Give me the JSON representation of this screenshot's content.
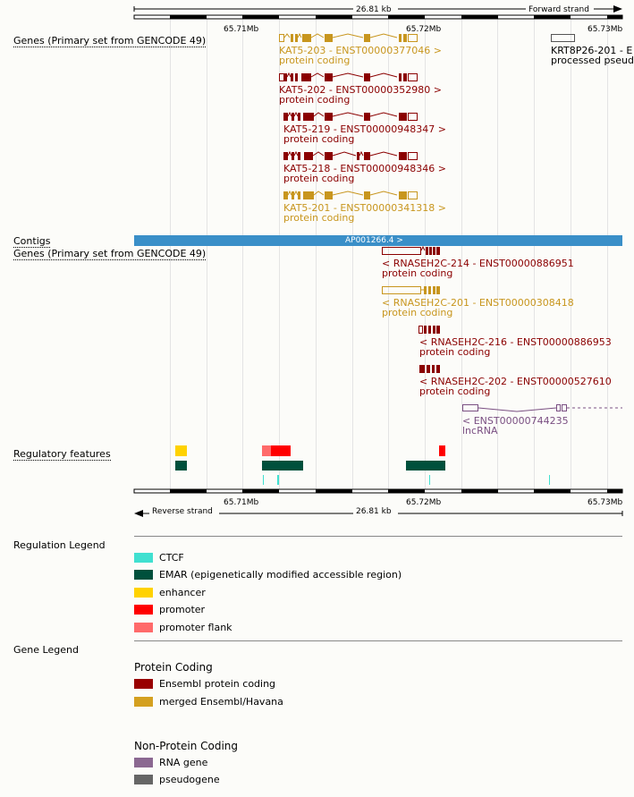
{
  "ruler_top": {
    "length": "26.81 kb",
    "strand": "Forward strand",
    "ticks": [
      "65.71Mb",
      "65.72Mb",
      "65.73Mb"
    ]
  },
  "ruler_bottom": {
    "length": "26.81 kb",
    "strand": "Reverse strand",
    "ticks": [
      "65.71Mb",
      "65.72Mb",
      "65.73Mb"
    ]
  },
  "tracks": {
    "genes_forward": "Genes (Primary set from GENCODE 49)",
    "contigs": "Contigs",
    "genes_reverse": "Genes (Primary set from GENCODE 49)",
    "regulatory": "Regulatory features"
  },
  "contig": {
    "label": "AP001266.4 >"
  },
  "forward_transcripts": [
    {
      "name": "KAT5-203 - ENST00000377046 >",
      "biotype": "protein coding",
      "color": "#c8961e"
    },
    {
      "name": "KAT5-202 - ENST00000352980 >",
      "biotype": "protein coding",
      "color": "#8b0000"
    },
    {
      "name": "KAT5-219 - ENST00000948347 >",
      "biotype": "protein coding",
      "color": "#8b0000"
    },
    {
      "name": "KAT5-218 - ENST00000948346 >",
      "biotype": "protein coding",
      "color": "#8b0000"
    },
    {
      "name": "KAT5-201 - ENST00000341318 >",
      "biotype": "protein coding",
      "color": "#c8961e"
    },
    {
      "name": "KRT8P26-201 - E",
      "biotype": "processed pseud",
      "color": "#555555"
    }
  ],
  "reverse_transcripts": [
    {
      "name": "< RNASEH2C-214 - ENST00000886951",
      "biotype": "protein coding",
      "color": "#8b0000"
    },
    {
      "name": "< RNASEH2C-201 - ENST00000308418",
      "biotype": "protein coding",
      "color": "#c8961e"
    },
    {
      "name": "< RNASEH2C-216 - ENST00000886953",
      "biotype": "protein coding",
      "color": "#8b0000"
    },
    {
      "name": "< RNASEH2C-202 - ENST00000527610",
      "biotype": "protein coding",
      "color": "#8b0000"
    },
    {
      "name": "< ENST00000744235",
      "biotype": "lncRNA",
      "color": "#7a4f82"
    }
  ],
  "regulation_legend": {
    "title": "Regulation Legend",
    "items": [
      {
        "label": "CTCF",
        "color": "#40e0d0"
      },
      {
        "label": "EMAR (epigenetically modified accessible region)",
        "color": "#00503c"
      },
      {
        "label": "enhancer",
        "color": "#ffd200"
      },
      {
        "label": "promoter",
        "color": "#ff0000"
      },
      {
        "label": "promoter flank",
        "color": "#ff6a6a"
      }
    ]
  },
  "gene_legend": {
    "title": "Gene Legend",
    "protein_coding_title": "Protein Coding",
    "protein_coding": [
      {
        "label": "Ensembl protein coding",
        "color": "#990000"
      },
      {
        "label": "merged Ensembl/Havana",
        "color": "#d4a020"
      }
    ],
    "non_coding_title": "Non-Protein Coding",
    "non_coding": [
      {
        "label": "RNA gene",
        "color": "#8b6891"
      },
      {
        "label": "pseudogene",
        "color": "#666666"
      }
    ]
  }
}
